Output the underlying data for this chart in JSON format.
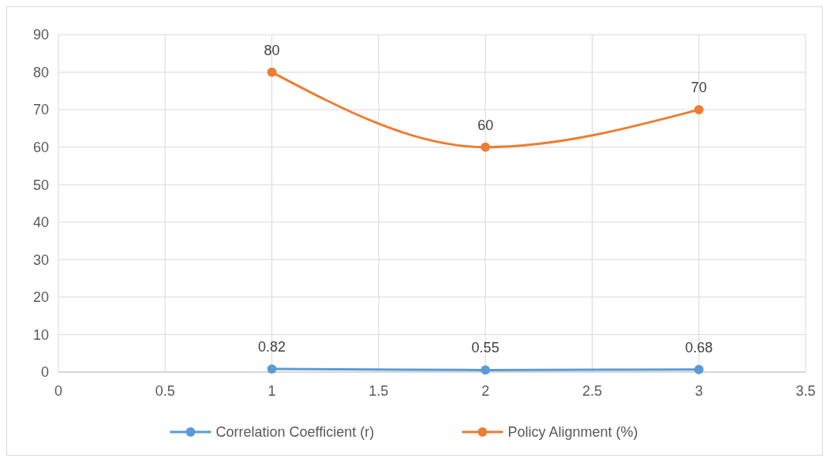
{
  "chart_data": {
    "type": "line",
    "x": [
      1,
      2,
      3
    ],
    "series": [
      {
        "name": "Correlation Coefficient (r)",
        "color": "#5b9bd5",
        "values": [
          0.82,
          0.55,
          0.68
        ]
      },
      {
        "name": "Policy Alignment (%)",
        "color": "#ed7d31",
        "values": [
          80,
          60,
          70
        ]
      }
    ],
    "xlim": [
      0,
      3.5
    ],
    "xticks": [
      0,
      0.5,
      1,
      1.5,
      2,
      2.5,
      3,
      3.5
    ],
    "ylim": [
      0,
      90
    ],
    "yticks": [
      0,
      10,
      20,
      30,
      40,
      50,
      60,
      70,
      80,
      90
    ],
    "grid": true,
    "legend": "bottom",
    "marker": "circle",
    "data_labels": true
  }
}
